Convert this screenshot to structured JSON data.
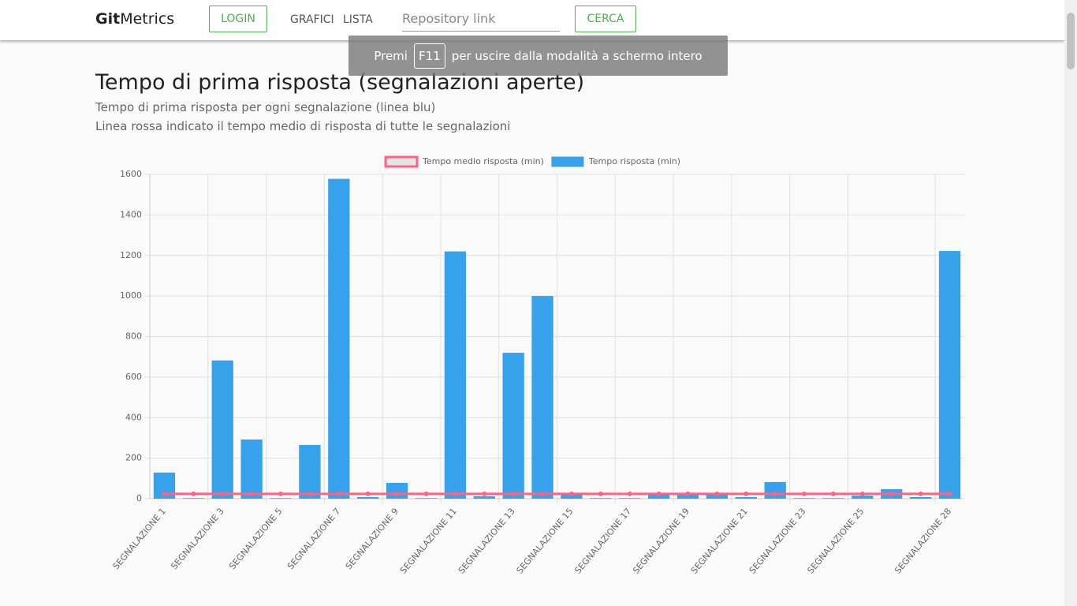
{
  "nav": {
    "brand_bold": "Git",
    "brand_rest": "Metrics",
    "login": "LOGIN",
    "links": [
      "GRAFICI",
      "LISTA"
    ],
    "search_placeholder": "Repository link",
    "search_button": "CERCA"
  },
  "toast": {
    "before": "Premi",
    "key": "F11",
    "after": "per uscire dalla modalità a schermo intero"
  },
  "header": {
    "title": "Tempo di prima risposta (segnalazioni aperte)",
    "subtitle_1": "Tempo di prima risposta per ogni segnalazione (linea blu)",
    "subtitle_2": "Linea rossa indicato il tempo medio di risposta di tutte le segnalazioni"
  },
  "chart_data": {
    "type": "bar",
    "categories": [
      "SEGNALAZIONE 1",
      null,
      "SEGNALAZIONE 3",
      null,
      "SEGNALAZIONE 5",
      null,
      "SEGNALAZIONE 7",
      null,
      "SEGNALAZIONE 9",
      null,
      "SEGNALAZIONE 11",
      null,
      "SEGNALAZIONE 13",
      null,
      "SEGNALAZIONE 15",
      null,
      "SEGNALAZIONE 17",
      null,
      "SEGNALAZIONE 19",
      null,
      "SEGNALAZIONE 21",
      null,
      "SEGNALAZIONE 23",
      null,
      "SEGNALAZIONE 25",
      null,
      null,
      "SEGNALAZIONE 28"
    ],
    "series": [
      {
        "name": "Tempo medio risposta (min)",
        "type": "line",
        "color": "#ff6384",
        "values": [
          24,
          24,
          24,
          24,
          24,
          24,
          24,
          24,
          24,
          24,
          24,
          24,
          24,
          24,
          24,
          24,
          24,
          24,
          24,
          24,
          24,
          24,
          24,
          24,
          24,
          24,
          24,
          24
        ]
      },
      {
        "name": "Tempo risposta (min)",
        "type": "bar",
        "color": "#36a2eb",
        "values": [
          129,
          3,
          682,
          292,
          3,
          265,
          1578,
          8,
          78,
          3,
          1220,
          12,
          720,
          1000,
          20,
          3,
          3,
          20,
          20,
          20,
          8,
          82,
          3,
          3,
          15,
          47,
          8,
          1222
        ]
      }
    ],
    "ylim": [
      0,
      1600
    ],
    "yticks": [
      0,
      200,
      400,
      600,
      800,
      1000,
      1200,
      1400,
      1600
    ],
    "grid": true,
    "legend": "top"
  }
}
